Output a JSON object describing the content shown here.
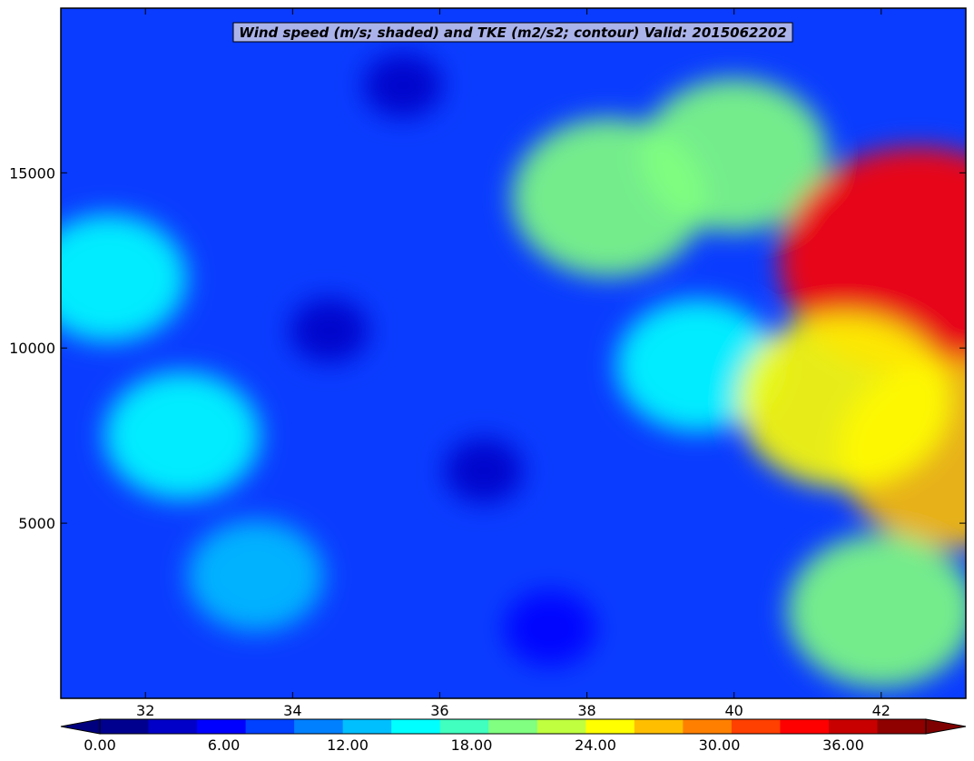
{
  "chart_data": {
    "type": "heatmap",
    "subtype": "filled-contour",
    "title": "Wind speed (m/s; shaded) and TKE (m2/s2; contour) Valid: 2015062202",
    "xlabel": "",
    "ylabel": "",
    "xlim": [
      30.85,
      43.15
    ],
    "ylim": [
      0,
      19700
    ],
    "x_ticks": [
      32,
      34,
      36,
      38,
      40,
      42
    ],
    "x_tick_labels": [
      "32",
      "34",
      "36",
      "38",
      "40",
      "42"
    ],
    "y_ticks": [
      5000,
      10000,
      15000
    ],
    "y_tick_labels": [
      "5000",
      "10000",
      "15000"
    ],
    "colormap": "jet",
    "grid": false,
    "colorbar": {
      "orientation": "horizontal",
      "placement": "bottom",
      "extend": "both",
      "levels": [
        0,
        2,
        4,
        6,
        8,
        10,
        12,
        14,
        16,
        18,
        20,
        22,
        24,
        26,
        28,
        30,
        32,
        34,
        36,
        38,
        40
      ],
      "tick_values": [
        0,
        6,
        12,
        18,
        24,
        30,
        36
      ],
      "tick_labels": [
        "0.00",
        "6.00",
        "12.00",
        "18.00",
        "24.00",
        "30.00",
        "36.00"
      ],
      "colors": [
        "#00008f",
        "#0000c8",
        "#0000ff",
        "#0040ff",
        "#0080ff",
        "#00bfff",
        "#00ffff",
        "#40ffbf",
        "#80ff80",
        "#bfff40",
        "#ffff00",
        "#ffbf00",
        "#ff8000",
        "#ff4000",
        "#ff0000",
        "#c80000",
        "#8f0000"
      ],
      "under_color": "#00007f",
      "over_color": "#7f0000"
    },
    "field_features": [
      {
        "x": 31.5,
        "y": 12000,
        "value": 15
      },
      {
        "x": 32.5,
        "y": 7500,
        "value": 15
      },
      {
        "x": 33.5,
        "y": 3500,
        "value": 12
      },
      {
        "x": 34.5,
        "y": 10500,
        "value": 3
      },
      {
        "x": 35.5,
        "y": 17500,
        "value": 3
      },
      {
        "x": 36.6,
        "y": 6500,
        "value": 3
      },
      {
        "x": 37.5,
        "y": 2000,
        "value": 5
      },
      {
        "x": 38.3,
        "y": 14300,
        "value": 21
      },
      {
        "x": 40.0,
        "y": 15500,
        "value": 20
      },
      {
        "x": 39.5,
        "y": 9500,
        "value": 16
      },
      {
        "x": 42.5,
        "y": 12500,
        "value": 34
      },
      {
        "x": 43.0,
        "y": 7000,
        "value": 27
      },
      {
        "x": 41.5,
        "y": 8500,
        "value": 24
      },
      {
        "x": 42.0,
        "y": 2500,
        "value": 20
      }
    ]
  }
}
